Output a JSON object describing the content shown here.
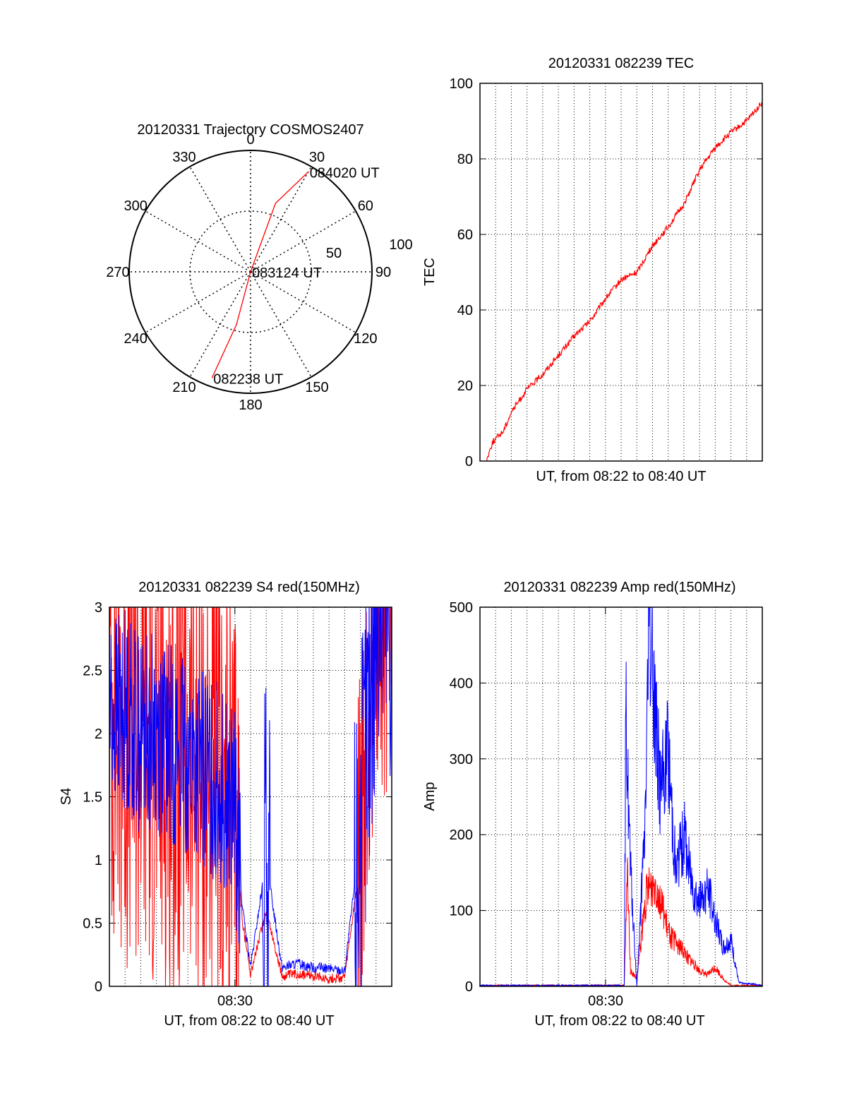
{
  "chart_data": [
    {
      "type": "polar",
      "title": "20120331 Trajectory COSMOS2407",
      "angle_labels": [
        "0",
        "30",
        "60",
        "90",
        "120",
        "150",
        "180",
        "210",
        "240",
        "270",
        "300",
        "330"
      ],
      "radius_labels": [
        "50",
        "100"
      ],
      "rlim": [
        0,
        100
      ],
      "grid": true,
      "trajectory": {
        "color": "#ff0000",
        "points": [
          {
            "azimuth": 30,
            "zenith": 95,
            "label": "084020 UT"
          },
          {
            "azimuth": 20,
            "zenith": 60,
            "label": ""
          },
          {
            "azimuth": 0,
            "zenith": 0,
            "label": "083124 UT"
          },
          {
            "azimuth": 195,
            "zenith": 45,
            "label": ""
          },
          {
            "azimuth": 200,
            "zenith": 93,
            "label": "082238 UT"
          }
        ]
      }
    },
    {
      "type": "line",
      "title": "20120331 082239 TEC",
      "xlabel": "UT, from 08:22 to 08:40 UT",
      "ylabel": "TEC",
      "xlim_minutes": [
        0,
        18
      ],
      "ylim": [
        0,
        100
      ],
      "yticks": [
        "0",
        "20",
        "40",
        "60",
        "80",
        "100"
      ],
      "grid": true,
      "series": [
        {
          "name": "TEC",
          "color": "#ff0000",
          "x": [
            0.4,
            0.8,
            1.5,
            2.0,
            2.5,
            3.0,
            4.0,
            5.0,
            6.0,
            7.0,
            8.0,
            9.0,
            10.0,
            11.0,
            12.0,
            13.0,
            14.0,
            15.0,
            16.0,
            17.0,
            18.0
          ],
          "y": [
            0,
            5,
            8,
            13,
            16,
            19,
            23,
            28,
            33,
            37,
            43,
            48,
            50,
            57,
            62,
            68,
            77,
            83,
            87,
            90,
            95
          ]
        }
      ]
    },
    {
      "type": "line",
      "title": "20120331 082239 S4 red(150MHz)",
      "xlabel": "UT, from 08:22 to 08:40 UT",
      "ylabel": "S4",
      "xtick_label": "08:30",
      "xlim_minutes": [
        0,
        18
      ],
      "ylim": [
        0,
        3
      ],
      "yticks": [
        "0",
        "0.5",
        "1",
        "1.5",
        "2",
        "2.5",
        "3"
      ],
      "grid": true,
      "series": [
        {
          "name": "red",
          "color": "#ff0000",
          "x": [
            0,
            1,
            2,
            3,
            4,
            5,
            6,
            7,
            8,
            8.5,
            9,
            10,
            11,
            12,
            13,
            14,
            15,
            16,
            17,
            18
          ],
          "y": [
            2.3,
            2.1,
            2.0,
            1.9,
            1.8,
            1.8,
            1.6,
            1.4,
            1.2,
            0.5,
            0.1,
            0.6,
            0.08,
            0.1,
            0.08,
            0.06,
            0.07,
            1.0,
            3.0,
            3.0
          ]
        },
        {
          "name": "blue",
          "color": "#0000ff",
          "x": [
            0,
            1,
            2,
            3,
            4,
            5,
            6,
            7,
            8,
            8.5,
            9,
            10,
            11,
            12,
            13,
            14,
            15,
            16,
            17,
            18
          ],
          "y": [
            2.2,
            2.2,
            2.0,
            2.0,
            1.9,
            1.8,
            1.7,
            1.6,
            1.4,
            0.6,
            0.15,
            1.0,
            0.15,
            0.18,
            0.15,
            0.14,
            0.12,
            1.2,
            3.0,
            3.0
          ]
        }
      ]
    },
    {
      "type": "line",
      "title": "20120331 082239 Amp red(150MHz)",
      "xlabel": "UT, from 08:22 to 08:40 UT",
      "ylabel": "Amp",
      "xtick_label": "08:30",
      "xlim_minutes": [
        0,
        18
      ],
      "ylim": [
        0,
        500
      ],
      "yticks": [
        "0",
        "100",
        "200",
        "300",
        "400",
        "500"
      ],
      "grid": true,
      "series": [
        {
          "name": "red",
          "color": "#ff0000",
          "x": [
            0,
            8,
            9.2,
            9.4,
            9.6,
            10.0,
            10.6,
            11.2,
            12.0,
            13.0,
            14.0,
            14.5,
            15.0,
            15.5,
            16.0,
            17.0,
            18.0
          ],
          "y": [
            0,
            0,
            0,
            150,
            20,
            10,
            120,
            140,
            70,
            45,
            20,
            15,
            25,
            10,
            0,
            0,
            0
          ]
        },
        {
          "name": "blue",
          "color": "#0000ff",
          "x": [
            0,
            8,
            9.2,
            9.3,
            9.6,
            10.0,
            10.5,
            10.8,
            11.0,
            11.5,
            12.0,
            12.5,
            13.0,
            13.5,
            14.0,
            14.5,
            15.0,
            15.5,
            16.0,
            16.5,
            18.0
          ],
          "y": [
            0,
            0,
            0,
            360,
            150,
            0,
            200,
            490,
            420,
            260,
            310,
            150,
            200,
            140,
            110,
            130,
            90,
            50,
            60,
            5,
            0
          ]
        }
      ]
    }
  ]
}
